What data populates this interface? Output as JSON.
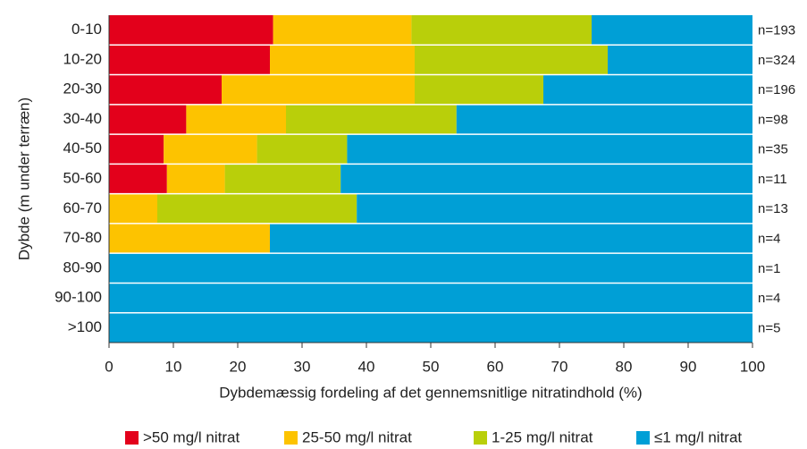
{
  "chart_data": {
    "type": "stacked-barh",
    "categories": [
      "0-10",
      "10-20",
      "20-30",
      "30-40",
      "40-50",
      "50-60",
      "60-70",
      "70-80",
      "80-90",
      "90-100",
      ">100"
    ],
    "n_labels": [
      "n=193",
      "n=324",
      "n=196",
      "n=98",
      "n=35",
      "n=11",
      "n=13",
      "n=4",
      "n=1",
      "n=4",
      "n=5"
    ],
    "series": [
      {
        "name": ">50 mg/l nitrat",
        "color": "#e3001b",
        "values": [
          25.5,
          25,
          17.5,
          12,
          8.5,
          9,
          0,
          0,
          0,
          0,
          0
        ]
      },
      {
        "name": "25-50 mg/l nitrat",
        "color": "#fdc300",
        "values": [
          21.5,
          22.5,
          30,
          15.5,
          14.5,
          9,
          7.5,
          25,
          0,
          0,
          0
        ]
      },
      {
        "name": "1-25 mg/l nitrat",
        "color": "#b9cf0a",
        "values": [
          28,
          30,
          20,
          26.5,
          14,
          18,
          31,
          0,
          0,
          0,
          0
        ]
      },
      {
        "name": "≤1 mg/l nitrat",
        "color": "#009fd6",
        "values": [
          25,
          22.5,
          32.5,
          46,
          63,
          64,
          61.5,
          75,
          100,
          100,
          100
        ]
      }
    ],
    "xlim": [
      0,
      100
    ],
    "xticks": [
      0,
      10,
      20,
      30,
      40,
      50,
      60,
      70,
      80,
      90,
      100
    ],
    "xlabel": "Dybdemæssig fordeling af det gennemsnitlige nitratindhold (%)",
    "ylabel": "Dybde (m under terræn)"
  }
}
